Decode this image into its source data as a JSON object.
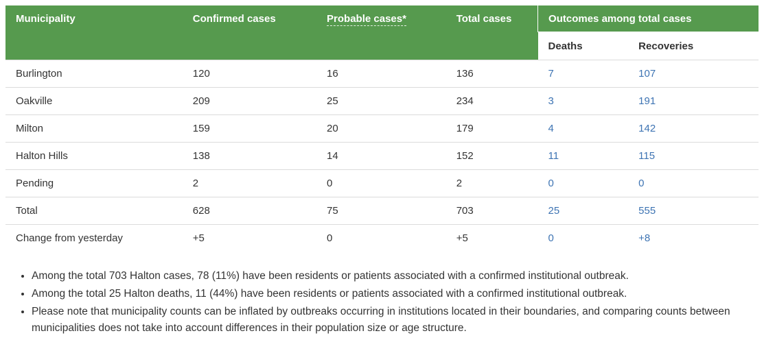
{
  "colors": {
    "header_green": "#569A4E",
    "link_blue": "#3E74B3",
    "text": "#333333",
    "row_border": "#DBDBDB"
  },
  "chart_data": {
    "type": "table",
    "headers": {
      "municipality": "Municipality",
      "confirmed": "Confirmed cases",
      "probable": "Probable cases*",
      "total": "Total cases",
      "outcomes_group": "Outcomes among total cases",
      "deaths": "Deaths",
      "recoveries": "Recoveries"
    },
    "rows": [
      {
        "municipality": "Burlington",
        "confirmed": "120",
        "probable": "16",
        "total": "136",
        "deaths": "7",
        "recoveries": "107"
      },
      {
        "municipality": "Oakville",
        "confirmed": "209",
        "probable": "25",
        "total": "234",
        "deaths": "3",
        "recoveries": "191"
      },
      {
        "municipality": "Milton",
        "confirmed": "159",
        "probable": "20",
        "total": "179",
        "deaths": "4",
        "recoveries": "142"
      },
      {
        "municipality": "Halton Hills",
        "confirmed": "138",
        "probable": "14",
        "total": "152",
        "deaths": "11",
        "recoveries": "115"
      },
      {
        "municipality": "Pending",
        "confirmed": "2",
        "probable": "0",
        "total": "2",
        "deaths": "0",
        "recoveries": "0"
      },
      {
        "municipality": "Total",
        "confirmed": "628",
        "probable": "75",
        "total": "703",
        "deaths": "25",
        "recoveries": "555"
      },
      {
        "municipality": "Change from yesterday",
        "confirmed": "+5",
        "probable": "0",
        "total": "+5",
        "deaths": "0",
        "recoveries": "+8"
      }
    ]
  },
  "notes": [
    "Among the total 703 Halton cases, 78 (11%) have been residents or patients associated with a confirmed institutional outbreak.",
    "Among the total 25 Halton deaths, 11 (44%) have been residents or patients associated with a confirmed institutional outbreak.",
    "Please note that municipality counts can be inflated by outbreaks occurring in institutions located in their boundaries, and comparing counts between municipalities does not take into account differences in their population size or age structure."
  ]
}
